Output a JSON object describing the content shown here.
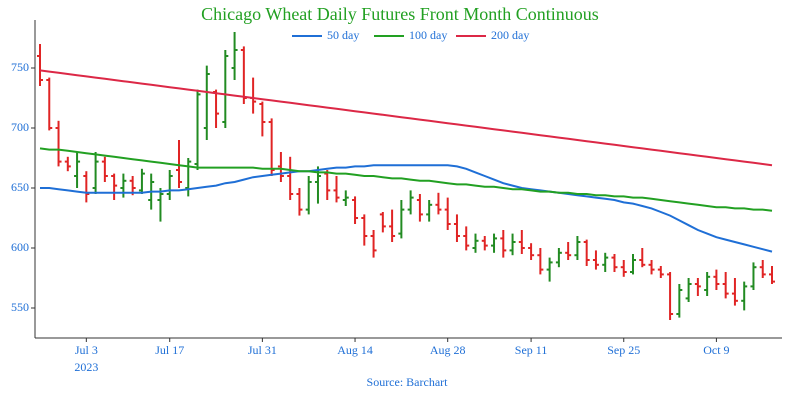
{
  "chart_data": {
    "type": "ohlc",
    "title": "Chicago Wheat Daily Futures Front Month Continuous",
    "source": "Source: Barchart",
    "categories": [
      "2023-06-26",
      "2023-06-27",
      "2023-06-28",
      "2023-06-29",
      "2023-06-30",
      "2023-07-03",
      "2023-07-05",
      "2023-07-06",
      "2023-07-07",
      "2023-07-10",
      "2023-07-11",
      "2023-07-12",
      "2023-07-13",
      "2023-07-14",
      "2023-07-17",
      "2023-07-18",
      "2023-07-19",
      "2023-07-20",
      "2023-07-21",
      "2023-07-24",
      "2023-07-25",
      "2023-07-26",
      "2023-07-27",
      "2023-07-28",
      "2023-07-31",
      "2023-08-01",
      "2023-08-02",
      "2023-08-03",
      "2023-08-04",
      "2023-08-07",
      "2023-08-08",
      "2023-08-09",
      "2023-08-10",
      "2023-08-11",
      "2023-08-14",
      "2023-08-15",
      "2023-08-16",
      "2023-08-17",
      "2023-08-18",
      "2023-08-21",
      "2023-08-22",
      "2023-08-23",
      "2023-08-24",
      "2023-08-25",
      "2023-08-28",
      "2023-08-29",
      "2023-08-30",
      "2023-08-31",
      "2023-09-01",
      "2023-09-05",
      "2023-09-06",
      "2023-09-07",
      "2023-09-08",
      "2023-09-11",
      "2023-09-12",
      "2023-09-13",
      "2023-09-14",
      "2023-09-15",
      "2023-09-18",
      "2023-09-19",
      "2023-09-20",
      "2023-09-21",
      "2023-09-22",
      "2023-09-25",
      "2023-09-26",
      "2023-09-27",
      "2023-09-28",
      "2023-09-29",
      "2023-10-02",
      "2023-10-03",
      "2023-10-04",
      "2023-10-05",
      "2023-10-06",
      "2023-10-09",
      "2023-10-10",
      "2023-10-11",
      "2023-10-12",
      "2023-10-13",
      "2023-10-16",
      "2023-10-17"
    ],
    "ohlc": {
      "up_color": "#228b22",
      "down_color": "#e02424",
      "open": [
        760,
        740,
        700,
        672,
        660,
        660,
        650,
        672,
        660,
        650,
        656,
        648,
        640,
        640,
        645,
        665,
        650,
        670,
        700,
        730,
        705,
        750,
        765,
        725,
        720,
        705,
        668,
        660,
        645,
        632,
        655,
        662,
        648,
        640,
        640,
        625,
        610,
        628,
        618,
        612,
        632,
        640,
        628,
        636,
        632,
        620,
        610,
        600,
        606,
        602,
        608,
        598,
        605,
        600,
        594,
        582,
        588,
        596,
        594,
        605,
        590,
        586,
        592,
        584,
        580,
        590,
        586,
        582,
        578,
        545,
        558,
        570,
        565,
        576,
        570,
        562,
        556,
        568,
        584,
        578
      ],
      "high": [
        770,
        742,
        706,
        676,
        680,
        664,
        680,
        676,
        662,
        662,
        660,
        666,
        662,
        650,
        665,
        690,
        675,
        732,
        752,
        732,
        765,
        780,
        768,
        742,
        722,
        708,
        680,
        676,
        650,
        660,
        668,
        665,
        660,
        648,
        643,
        628,
        615,
        630,
        632,
        640,
        648,
        645,
        640,
        646,
        642,
        628,
        618,
        612,
        610,
        612,
        615,
        612,
        615,
        604,
        600,
        592,
        600,
        605,
        610,
        607,
        598,
        596,
        595,
        590,
        595,
        600,
        590,
        585,
        580,
        570,
        575,
        575,
        580,
        582,
        580,
        575,
        572,
        588,
        590,
        585
      ],
      "low": [
        735,
        698,
        668,
        664,
        650,
        638,
        645,
        655,
        640,
        642,
        644,
        645,
        632,
        622,
        640,
        650,
        643,
        665,
        690,
        700,
        700,
        740,
        720,
        712,
        693,
        660,
        655,
        640,
        627,
        628,
        637,
        640,
        638,
        635,
        620,
        602,
        592,
        613,
        605,
        608,
        628,
        622,
        622,
        628,
        615,
        605,
        598,
        596,
        598,
        596,
        592,
        594,
        595,
        590,
        578,
        572,
        584,
        590,
        590,
        585,
        582,
        580,
        580,
        576,
        578,
        584,
        578,
        575,
        540,
        542,
        555,
        560,
        560,
        565,
        558,
        552,
        548,
        565,
        575,
        570
      ],
      "close": [
        740,
        700,
        672,
        668,
        672,
        645,
        672,
        660,
        652,
        656,
        650,
        662,
        655,
        645,
        660,
        655,
        672,
        728,
        745,
        712,
        760,
        765,
        725,
        722,
        705,
        665,
        660,
        645,
        632,
        655,
        660,
        648,
        642,
        642,
        625,
        610,
        598,
        618,
        610,
        632,
        642,
        628,
        636,
        632,
        620,
        610,
        602,
        606,
        602,
        608,
        598,
        605,
        600,
        594,
        582,
        588,
        596,
        594,
        605,
        590,
        586,
        592,
        584,
        580,
        590,
        586,
        582,
        578,
        545,
        565,
        570,
        568,
        576,
        570,
        562,
        556,
        568,
        584,
        578,
        572
      ]
    },
    "series": [
      {
        "name": "50 day",
        "color": "#1f6fd6",
        "values": [
          650,
          650,
          649,
          648,
          647,
          646,
          646,
          646,
          646,
          646,
          646,
          646,
          647,
          647,
          648,
          648,
          649,
          650,
          651,
          652,
          654,
          655,
          657,
          659,
          660,
          661,
          662,
          663,
          664,
          664,
          665,
          666,
          667,
          667,
          668,
          668,
          669,
          669,
          669,
          669,
          669,
          669,
          669,
          669,
          669,
          668,
          666,
          663,
          660,
          657,
          654,
          652,
          650,
          649,
          648,
          647,
          646,
          645,
          644,
          643,
          642,
          641,
          640,
          638,
          637,
          635,
          633,
          630,
          627,
          623,
          619,
          615,
          612,
          609,
          607,
          605,
          603,
          601,
          599,
          597
        ]
      },
      {
        "name": "100 day",
        "color": "#22a022",
        "values": [
          683,
          682,
          682,
          681,
          680,
          679,
          678,
          677,
          676,
          675,
          674,
          673,
          672,
          671,
          670,
          669,
          668,
          667,
          667,
          667,
          667,
          667,
          667,
          667,
          666,
          666,
          666,
          665,
          664,
          664,
          663,
          663,
          662,
          662,
          661,
          660,
          660,
          659,
          658,
          658,
          657,
          656,
          656,
          655,
          654,
          653,
          653,
          652,
          651,
          651,
          650,
          649,
          649,
          648,
          647,
          647,
          646,
          646,
          645,
          645,
          644,
          644,
          643,
          643,
          642,
          642,
          641,
          640,
          639,
          638,
          637,
          636,
          635,
          634,
          634,
          633,
          633,
          632,
          632,
          631
        ]
      },
      {
        "name": "200 day",
        "color": "#dc2846",
        "values": [
          748,
          747,
          746,
          745,
          744,
          743,
          742,
          741,
          740,
          739,
          738,
          737,
          736,
          735,
          734,
          733,
          732,
          731,
          730,
          729,
          728,
          727,
          726,
          725,
          724,
          723,
          722,
          721,
          720,
          719,
          718,
          717,
          716,
          715,
          714,
          713,
          712,
          711,
          710,
          709,
          708,
          707,
          706,
          705,
          704,
          703,
          702,
          701,
          700,
          699,
          698,
          697,
          696,
          695,
          694,
          693,
          692,
          691,
          690,
          689,
          688,
          687,
          686,
          685,
          684,
          683,
          682,
          681,
          680,
          679,
          678,
          677,
          676,
          675,
          674,
          673,
          672,
          671,
          670,
          669
        ]
      }
    ],
    "ylim": [
      525,
      790
    ],
    "yticks": [
      550,
      600,
      650,
      700,
      750
    ],
    "xticks": [
      {
        "value": "2023-07-03",
        "label": "Jul 3",
        "sublabel": "2023"
      },
      {
        "value": "2023-07-17",
        "label": "Jul 17"
      },
      {
        "value": "2023-07-31",
        "label": "Jul 31"
      },
      {
        "value": "2023-08-14",
        "label": "Aug 14"
      },
      {
        "value": "2023-08-28",
        "label": "Aug 28"
      },
      {
        "value": "2023-09-11",
        "label": "Sep 11"
      },
      {
        "value": "2023-09-25",
        "label": "Sep 25"
      },
      {
        "value": "2023-10-09",
        "label": "Oct 9"
      }
    ]
  }
}
